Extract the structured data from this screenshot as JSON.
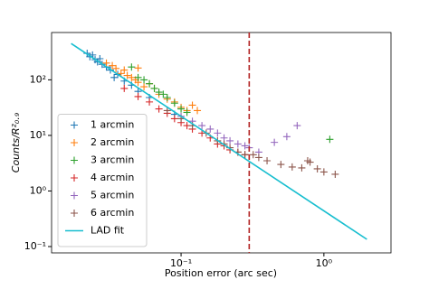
{
  "chart_data": {
    "type": "scatter",
    "xlabel": "Position error (arc sec)",
    "ylabel": "Counts/R²₀.₉",
    "xscale": "log",
    "yscale": "log",
    "xlim": [
      0.0124,
      2.95
    ],
    "ylim": [
      0.077,
      710
    ],
    "xticks": [
      {
        "value": 0.1,
        "label": "10⁻¹"
      },
      {
        "value": 1,
        "label": "10⁰"
      }
    ],
    "yticks": [
      {
        "value": 0.1,
        "label": "10⁻¹"
      },
      {
        "value": 1,
        "label": "10⁰"
      },
      {
        "value": 10,
        "label": "10¹"
      },
      {
        "value": 100,
        "label": "10²"
      }
    ],
    "legend": "lower left",
    "series": [
      {
        "name": "1 arcmin",
        "color": "#1f77b4",
        "x": [
          0.022,
          0.023,
          0.024,
          0.025,
          0.026,
          0.027,
          0.028,
          0.03,
          0.032,
          0.034,
          0.036,
          0.04,
          0.045,
          0.05,
          0.06,
          0.09
        ],
        "values": [
          300,
          260,
          280,
          230,
          210,
          240,
          190,
          170,
          150,
          110,
          125,
          95,
          80,
          62,
          48,
          24
        ]
      },
      {
        "name": "2 arcmin",
        "color": "#ff7f0e",
        "x": [
          0.03,
          0.033,
          0.035,
          0.038,
          0.04,
          0.042,
          0.045,
          0.048,
          0.05,
          0.055,
          0.06,
          0.065,
          0.07,
          0.08,
          0.09,
          0.1,
          0.11,
          0.12,
          0.13,
          0.05
        ],
        "values": [
          200,
          180,
          160,
          130,
          150,
          120,
          110,
          100,
          90,
          75,
          85,
          70,
          55,
          45,
          40,
          32,
          28,
          35,
          28,
          163
        ]
      },
      {
        "name": "3 arcmin",
        "color": "#2ca02c",
        "x": [
          0.045,
          0.05,
          0.055,
          0.06,
          0.065,
          0.07,
          0.075,
          0.08,
          0.09,
          0.1,
          0.11,
          1.1
        ],
        "values": [
          170,
          110,
          100,
          85,
          70,
          60,
          55,
          48,
          38,
          30,
          26,
          8.5
        ]
      },
      {
        "name": "4 arcmin",
        "color": "#d62728",
        "x": [
          0.04,
          0.05,
          0.06,
          0.07,
          0.08,
          0.09,
          0.1,
          0.11,
          0.12,
          0.14,
          0.16,
          0.18,
          0.2,
          0.22,
          0.25,
          0.28
        ],
        "values": [
          70,
          50,
          40,
          30,
          25,
          20,
          17,
          15,
          13,
          11,
          9,
          7,
          6.5,
          5.5,
          5,
          4.5
        ]
      },
      {
        "name": "5 arcmin",
        "color": "#9467bd",
        "x": [
          0.1,
          0.12,
          0.14,
          0.16,
          0.18,
          0.2,
          0.22,
          0.25,
          0.28,
          0.3,
          0.35,
          0.45,
          0.55,
          0.65
        ],
        "values": [
          22,
          18,
          15,
          13,
          11,
          9,
          8,
          7,
          6.5,
          6,
          5,
          7.5,
          9.5,
          15
        ]
      },
      {
        "name": "6 arcmin",
        "color": "#8c564b",
        "x": [
          0.08,
          0.1,
          0.12,
          0.15,
          0.18,
          0.2,
          0.22,
          0.25,
          0.28,
          0.32,
          0.35,
          0.4,
          0.5,
          0.6,
          0.7,
          0.77,
          0.8,
          0.9,
          1.0,
          1.2
        ],
        "values": [
          28,
          20,
          15,
          11,
          8,
          7,
          6,
          5,
          4.5,
          4.5,
          4,
          3.5,
          3,
          2.7,
          2.6,
          3.5,
          3.3,
          2.5,
          2.2,
          2
        ]
      }
    ],
    "fit": {
      "name": "LAD fit",
      "color": "#17becf",
      "x": [
        0.017,
        2.0
      ],
      "values": [
        450,
        0.135
      ]
    },
    "vline": {
      "x": 0.3,
      "color": "#b22222"
    }
  }
}
